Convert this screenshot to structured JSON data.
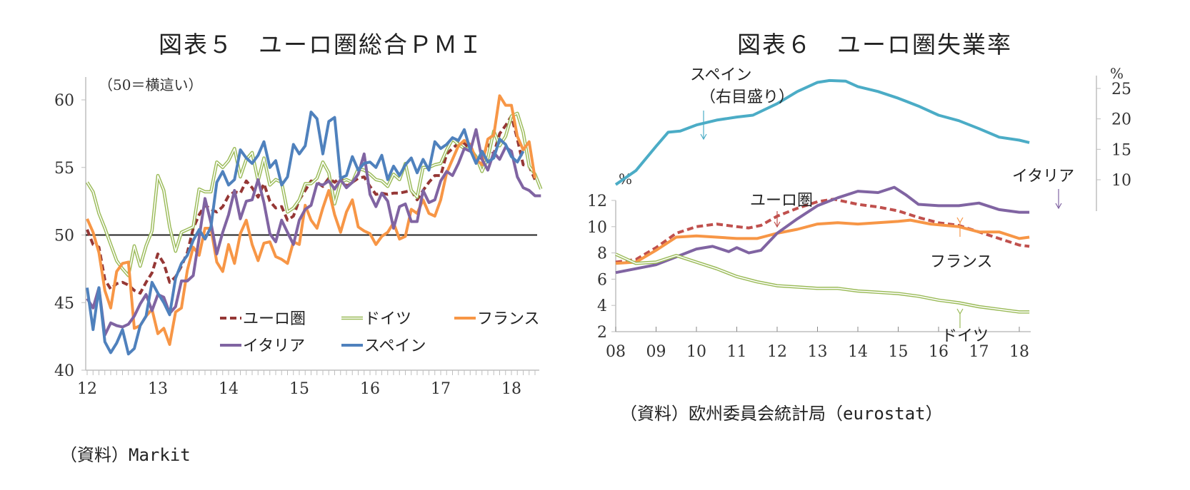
{
  "chart_data": [
    {
      "type": "line",
      "title": "図表５　ユーロ圏総合ＰＭＩ",
      "annotation": "（50＝横這い）",
      "source": "（資料）Markit",
      "xlabel": "",
      "ylabel": "",
      "x_start": "2012-01",
      "x_frequency": "monthly",
      "x_ticks": [
        "12",
        "13",
        "14",
        "15",
        "16",
        "17",
        "18"
      ],
      "ylim": [
        40,
        60
      ],
      "y_ticks": [
        "40",
        "45",
        "50",
        "55",
        "60"
      ],
      "reference_line": 50,
      "legend_position": "bottom-right-inside",
      "series": [
        {
          "name": "ユーロ圏",
          "color": "#953735",
          "style": "dashed",
          "values": [
            50.4,
            49.3,
            49.1,
            46.7,
            46.0,
            46.4,
            46.5,
            46.3,
            45.9,
            45.7,
            46.5,
            47.2,
            48.6,
            47.9,
            46.5,
            46.9,
            47.7,
            48.7,
            50.5,
            51.5,
            52.2,
            51.9,
            51.7,
            52.1,
            52.9,
            53.2,
            53.1,
            54.0,
            53.5,
            52.8,
            53.8,
            52.5,
            52.0,
            52.1,
            51.1,
            51.4,
            52.6,
            53.3,
            54.0,
            53.9,
            53.6,
            54.2,
            53.9,
            54.3,
            53.6,
            53.9,
            54.2,
            54.3,
            53.6,
            53.0,
            53.1,
            53.0,
            53.1,
            53.1,
            53.2,
            53.3,
            52.6,
            53.3,
            53.9,
            54.4,
            54.4,
            56.0,
            56.4,
            56.8,
            56.8,
            56.3,
            55.7,
            55.7,
            56.7,
            56.0,
            57.5,
            58.1,
            58.8,
            57.1,
            55.2,
            55.1,
            54.1
          ]
        },
        {
          "name": "ドイツ",
          "color": "#9BBB59",
          "style": "double",
          "values": [
            53.9,
            53.2,
            51.6,
            50.5,
            49.3,
            48.1,
            47.5,
            47.0,
            49.2,
            47.7,
            49.2,
            50.3,
            54.4,
            53.3,
            50.6,
            48.8,
            50.2,
            50.4,
            50.6,
            53.4,
            53.2,
            53.2,
            55.4,
            55.0,
            55.5,
            56.4,
            54.3,
            55.6,
            56.1,
            54.0,
            55.7,
            53.7,
            54.1,
            53.9,
            51.7,
            52.0,
            52.6,
            53.8,
            53.8,
            54.2,
            55.4,
            54.6,
            52.3,
            53.9,
            54.1,
            53.9,
            54.9,
            54.8,
            54.5,
            54.1,
            54.0,
            53.6,
            54.5,
            54.1,
            55.3,
            53.3,
            52.8,
            55.0,
            55.0,
            55.2,
            55.3,
            56.3,
            57.1,
            56.7,
            56.4,
            56.4,
            55.8,
            54.7,
            55.7,
            57.7,
            56.6,
            57.3,
            58.8,
            59.0,
            57.6,
            55.1,
            54.5,
            53.4
          ]
        },
        {
          "name": "フランス",
          "color": "#F79646",
          "style": "solid",
          "values": [
            51.2,
            50.2,
            48.7,
            45.9,
            44.6,
            47.3,
            47.9,
            48.0,
            43.1,
            43.3,
            44.0,
            44.5,
            42.7,
            43.1,
            41.9,
            44.3,
            44.6,
            47.4,
            49.1,
            48.5,
            50.5,
            50.5,
            48.0,
            47.3,
            49.3,
            47.9,
            50.1,
            51.1,
            49.3,
            48.1,
            49.4,
            49.5,
            48.4,
            48.2,
            47.9,
            49.5,
            49.3,
            52.2,
            51.1,
            50.5,
            52.0,
            53.3,
            51.5,
            50.2,
            51.7,
            52.6,
            50.6,
            50.3,
            50.1,
            49.3,
            49.9,
            50.2,
            50.9,
            49.7,
            49.9,
            51.9,
            51.6,
            52.6,
            51.6,
            51.4,
            52.6,
            54.6,
            55.6,
            56.6,
            57.0,
            56.7,
            55.6,
            55.2,
            57.1,
            57.4,
            60.3,
            59.6,
            59.6,
            57.3,
            56.3,
            56.9,
            54.2
          ]
        },
        {
          "name": "イタリア",
          "color": "#8064A2",
          "style": "solid",
          "values": [
            45.3,
            44.6,
            46.1,
            42.6,
            43.5,
            43.3,
            43.2,
            43.4,
            44.0,
            44.9,
            45.6,
            44.4,
            45.6,
            45.4,
            44.2,
            44.7,
            46.6,
            46.6,
            47.0,
            49.8,
            52.7,
            50.9,
            48.6,
            50.2,
            51.5,
            53.3,
            51.2,
            52.5,
            52.6,
            54.1,
            52.4,
            50.1,
            49.5,
            51.1,
            50.2,
            49.3,
            51.1,
            51.9,
            52.2,
            53.8,
            53.7,
            54.0,
            53.4,
            54.1,
            53.5,
            53.9,
            54.5,
            56.0,
            53.0,
            52.1,
            53.1,
            52.5,
            50.5,
            52.1,
            52.3,
            51.0,
            51.0,
            53.3,
            52.4,
            52.6,
            54.0,
            54.7,
            54.4,
            55.3,
            56.4,
            56.2,
            57.8,
            55.6,
            54.8,
            56.1,
            55.6,
            56.5,
            56.2,
            54.3,
            53.5,
            53.3,
            52.9,
            52.9
          ]
        },
        {
          "name": "スペイン",
          "color": "#4F81BD",
          "style": "solid",
          "values": [
            46.1,
            43.0,
            46.1,
            42.1,
            41.3,
            42.0,
            43.0,
            41.2,
            41.6,
            43.3,
            44.0,
            46.5,
            45.7,
            45.0,
            44.1,
            46.8,
            47.9,
            48.5,
            49.6,
            50.4,
            49.7,
            50.6,
            53.9,
            54.7,
            53.7,
            54.1,
            56.3,
            55.7,
            55.3,
            55.9,
            56.9,
            55.0,
            55.5,
            53.7,
            54.3,
            56.7,
            56.0,
            56.6,
            59.1,
            58.6,
            56.0,
            58.4,
            58.7,
            54.2,
            54.4,
            55.8,
            54.8,
            55.3,
            55.4,
            55.0,
            55.9,
            54.1,
            55.1,
            54.4,
            55.2,
            55.7,
            54.6,
            55.6,
            54.8,
            56.9,
            56.4,
            56.7,
            57.2,
            57.0,
            57.8,
            56.3,
            55.3,
            56.2,
            55.4,
            55.7,
            57.1,
            56.7,
            55.8,
            55.4,
            56.2
          ]
        }
      ]
    },
    {
      "type": "line",
      "title": "図表６　ユーロ圏失業率",
      "source": "（資料）欧州委員会統計局（eurostat）",
      "x_start": "2008-01",
      "x_frequency": "monthly",
      "x_ticks": [
        "08",
        "09",
        "10",
        "11",
        "12",
        "13",
        "14",
        "15",
        "16",
        "17",
        "18"
      ],
      "y_left": {
        "unit": "%",
        "lim": [
          2,
          13
        ],
        "ticks": [
          "2",
          "4",
          "6",
          "8",
          "10",
          "12"
        ]
      },
      "y_right": {
        "unit": "%",
        "lim": [
          8,
          27
        ],
        "ticks": [
          "10",
          "15",
          "20",
          "25"
        ]
      },
      "annotations": [
        "スペイン",
        "（右目盛り）",
        "ユーロ圏",
        "イタリア",
        "フランス",
        "ドイツ"
      ],
      "series": [
        {
          "name": "ユーロ圏",
          "axis": "left",
          "color": "#C0504D",
          "style": "dashed",
          "points": [
            [
              2008.0,
              7.3
            ],
            [
              2008.5,
              7.5
            ],
            [
              2009.0,
              8.4
            ],
            [
              2009.5,
              9.5
            ],
            [
              2010.0,
              10.0
            ],
            [
              2010.5,
              10.2
            ],
            [
              2011.0,
              10.0
            ],
            [
              2011.3,
              9.9
            ],
            [
              2011.6,
              10.1
            ],
            [
              2012.0,
              10.8
            ],
            [
              2012.5,
              11.4
            ],
            [
              2013.0,
              11.9
            ],
            [
              2013.4,
              12.1
            ],
            [
              2014.0,
              11.7
            ],
            [
              2014.5,
              11.5
            ],
            [
              2015.0,
              11.2
            ],
            [
              2015.5,
              10.7
            ],
            [
              2016.0,
              10.3
            ],
            [
              2016.5,
              10.1
            ],
            [
              2017.0,
              9.6
            ],
            [
              2017.5,
              9.1
            ],
            [
              2018.0,
              8.6
            ],
            [
              2018.25,
              8.5
            ]
          ]
        },
        {
          "name": "フランス",
          "axis": "left",
          "color": "#F79646",
          "style": "solid",
          "points": [
            [
              2008.0,
              7.2
            ],
            [
              2008.5,
              7.3
            ],
            [
              2009.0,
              8.2
            ],
            [
              2009.5,
              9.2
            ],
            [
              2010.0,
              9.3
            ],
            [
              2010.5,
              9.2
            ],
            [
              2011.0,
              9.1
            ],
            [
              2011.5,
              9.1
            ],
            [
              2012.0,
              9.5
            ],
            [
              2012.5,
              9.8
            ],
            [
              2013.0,
              10.2
            ],
            [
              2013.5,
              10.3
            ],
            [
              2014.0,
              10.2
            ],
            [
              2014.5,
              10.3
            ],
            [
              2015.0,
              10.4
            ],
            [
              2015.3,
              10.5
            ],
            [
              2015.8,
              10.2
            ],
            [
              2016.5,
              10.0
            ],
            [
              2017.0,
              9.6
            ],
            [
              2017.5,
              9.6
            ],
            [
              2018.0,
              9.1
            ],
            [
              2018.25,
              9.2
            ]
          ]
        },
        {
          "name": "イタリア",
          "axis": "left",
          "color": "#8064A2",
          "style": "solid",
          "points": [
            [
              2008.0,
              6.5
            ],
            [
              2008.5,
              6.8
            ],
            [
              2009.0,
              7.1
            ],
            [
              2009.5,
              7.7
            ],
            [
              2010.0,
              8.3
            ],
            [
              2010.4,
              8.5
            ],
            [
              2010.8,
              8.1
            ],
            [
              2011.0,
              8.4
            ],
            [
              2011.3,
              8.0
            ],
            [
              2011.6,
              8.2
            ],
            [
              2012.0,
              9.5
            ],
            [
              2012.5,
              10.6
            ],
            [
              2013.0,
              11.6
            ],
            [
              2013.5,
              12.2
            ],
            [
              2014.0,
              12.7
            ],
            [
              2014.5,
              12.6
            ],
            [
              2014.9,
              13.0
            ],
            [
              2015.2,
              12.4
            ],
            [
              2015.5,
              11.7
            ],
            [
              2016.0,
              11.6
            ],
            [
              2016.5,
              11.6
            ],
            [
              2017.0,
              11.8
            ],
            [
              2017.5,
              11.3
            ],
            [
              2018.0,
              11.1
            ],
            [
              2018.25,
              11.1
            ]
          ]
        },
        {
          "name": "ドイツ",
          "axis": "left",
          "color": "#9BBB59",
          "style": "double",
          "points": [
            [
              2008.0,
              7.9
            ],
            [
              2008.5,
              7.2
            ],
            [
              2009.0,
              7.3
            ],
            [
              2009.5,
              7.8
            ],
            [
              2010.0,
              7.3
            ],
            [
              2010.5,
              6.8
            ],
            [
              2011.0,
              6.2
            ],
            [
              2011.5,
              5.8
            ],
            [
              2012.0,
              5.5
            ],
            [
              2012.5,
              5.4
            ],
            [
              2013.0,
              5.3
            ],
            [
              2013.5,
              5.3
            ],
            [
              2014.0,
              5.1
            ],
            [
              2014.5,
              5.0
            ],
            [
              2015.0,
              4.9
            ],
            [
              2015.5,
              4.7
            ],
            [
              2016.0,
              4.4
            ],
            [
              2016.5,
              4.2
            ],
            [
              2017.0,
              3.9
            ],
            [
              2017.5,
              3.7
            ],
            [
              2018.0,
              3.5
            ],
            [
              2018.25,
              3.5
            ]
          ]
        },
        {
          "name": "スペイン",
          "axis": "right",
          "color": "#4BACC6",
          "style": "solid",
          "points": [
            [
              2008.0,
              9.2
            ],
            [
              2008.5,
              11.5
            ],
            [
              2009.0,
              15.5
            ],
            [
              2009.3,
              17.8
            ],
            [
              2009.6,
              18.0
            ],
            [
              2010.0,
              19.0
            ],
            [
              2010.5,
              19.8
            ],
            [
              2011.0,
              20.3
            ],
            [
              2011.4,
              20.6
            ],
            [
              2012.0,
              22.5
            ],
            [
              2012.5,
              24.5
            ],
            [
              2013.0,
              26.0
            ],
            [
              2013.3,
              26.3
            ],
            [
              2013.7,
              26.2
            ],
            [
              2014.0,
              25.3
            ],
            [
              2014.5,
              24.5
            ],
            [
              2015.0,
              23.4
            ],
            [
              2015.5,
              22.1
            ],
            [
              2016.0,
              20.6
            ],
            [
              2016.5,
              19.7
            ],
            [
              2017.0,
              18.4
            ],
            [
              2017.5,
              17.0
            ],
            [
              2018.0,
              16.5
            ],
            [
              2018.25,
              16.1
            ]
          ]
        }
      ]
    }
  ]
}
